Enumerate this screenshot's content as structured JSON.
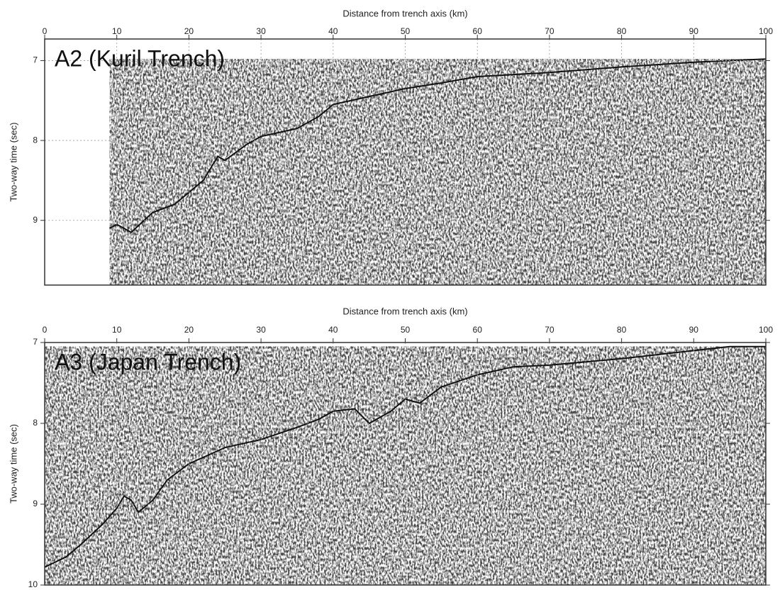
{
  "chart_data": [
    {
      "type": "line",
      "title": "A2 (Kuril Trench)",
      "x_label": "Distance from trench axis (km)",
      "y_label": "Two-way time (sec)",
      "x": [
        9,
        10,
        12,
        15,
        18,
        20,
        22,
        24,
        25,
        28,
        30,
        35,
        38,
        40,
        45,
        50,
        55,
        60,
        70,
        80,
        90,
        100
      ],
      "values": [
        9.1,
        9.05,
        9.15,
        8.9,
        8.8,
        8.65,
        8.5,
        8.2,
        8.25,
        8.05,
        7.95,
        7.85,
        7.7,
        7.55,
        7.45,
        7.35,
        7.28,
        7.2,
        7.15,
        7.08,
        7.02,
        6.98
      ],
      "color": "#111111",
      "xlim": [
        0,
        100
      ],
      "xticks": [
        0,
        10,
        20,
        30,
        40,
        50,
        60,
        70,
        80,
        90,
        100
      ],
      "ylim": [
        6.73,
        9.81
      ],
      "yticks": [
        7,
        8,
        9
      ],
      "y_inverted": true,
      "grid": true
    },
    {
      "type": "line",
      "title": "A3 (Japan Trench)",
      "x_label": "Distance from trench axis (km)",
      "y_label": "Two-way time (sec)",
      "x": [
        0,
        3,
        5,
        8,
        10,
        11,
        12,
        13,
        15,
        17,
        20,
        25,
        30,
        35,
        38,
        40,
        43,
        45,
        48,
        50,
        52,
        55,
        60,
        65,
        70,
        80,
        90,
        95,
        100
      ],
      "values": [
        9.78,
        9.65,
        9.5,
        9.25,
        9.05,
        8.9,
        8.95,
        9.1,
        8.95,
        8.7,
        8.5,
        8.3,
        8.2,
        8.05,
        7.95,
        7.85,
        7.82,
        8.0,
        7.85,
        7.7,
        7.75,
        7.55,
        7.4,
        7.3,
        7.28,
        7.2,
        7.1,
        7.05,
        7.05
      ],
      "color": "#111111",
      "xlim": [
        0,
        100
      ],
      "xticks": [
        0,
        10,
        20,
        30,
        40,
        50,
        60,
        70,
        80,
        90,
        100
      ],
      "ylim": [
        7,
        10
      ],
      "yticks": [
        7,
        8,
        9,
        10
      ],
      "y_inverted": true,
      "grid": true
    }
  ]
}
